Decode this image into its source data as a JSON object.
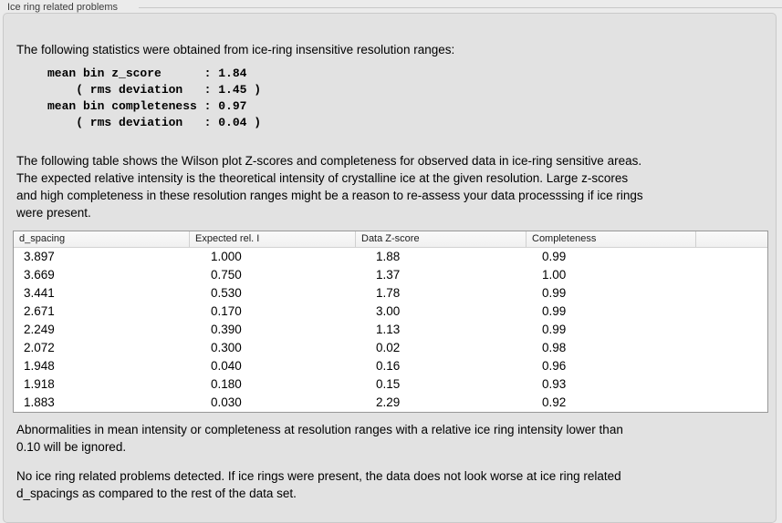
{
  "panel": {
    "title": "Ice ring related problems"
  },
  "stats": {
    "intro": "The following statistics were obtained from ice-ring insensitive resolution ranges:",
    "lines": [
      "mean bin z_score      : 1.84",
      "    ( rms deviation   : 1.45 )",
      "mean bin completeness : 0.97",
      "    ( rms deviation   : 0.04 )"
    ],
    "mean_bin_z_score": 1.84,
    "z_score_rms_deviation": 1.45,
    "mean_bin_completeness": 0.97,
    "completeness_rms_deviation": 0.04
  },
  "table_intro": [
    "The following table shows the Wilson plot Z-scores and completeness for observed data in ice-ring sensitive areas.",
    "The expected relative intensity is the theoretical intensity of crystalline ice at the given resolution. Large z-scores",
    "and high completeness in these resolution ranges might be a reason to re-assess your data processsing if ice rings",
    "were present."
  ],
  "table": {
    "columns": [
      "d_spacing",
      "Expected rel. I",
      "Data Z-score",
      "Completeness",
      ""
    ],
    "rows": [
      [
        "3.897",
        "1.000",
        "1.88",
        "0.99"
      ],
      [
        "3.669",
        "0.750",
        "1.37",
        "1.00"
      ],
      [
        "3.441",
        "0.530",
        "1.78",
        "0.99"
      ],
      [
        "2.671",
        "0.170",
        "3.00",
        "0.99"
      ],
      [
        "2.249",
        "0.390",
        "1.13",
        "0.99"
      ],
      [
        "2.072",
        "0.300",
        "0.02",
        "0.98"
      ],
      [
        "1.948",
        "0.040",
        "0.16",
        "0.96"
      ],
      [
        "1.918",
        "0.180",
        "0.15",
        "0.93"
      ],
      [
        "1.883",
        "0.030",
        "2.29",
        "0.92"
      ]
    ]
  },
  "notes": {
    "ignore_note": [
      "Abnormalities in mean intensity or completeness at resolution ranges with a relative ice ring intensity lower than",
      "0.10 will be ignored."
    ],
    "conclusion": [
      "No ice ring related problems detected. If ice rings were present, the data does not look worse at ice ring related",
      "d_spacings as compared to the rest of the data set."
    ]
  },
  "colors": {
    "page_bg": "#ebebeb",
    "box_bg": "#e2e2e2",
    "box_border": "#c9c9c9",
    "table_border": "#979797",
    "table_bg": "#ffffff"
  }
}
